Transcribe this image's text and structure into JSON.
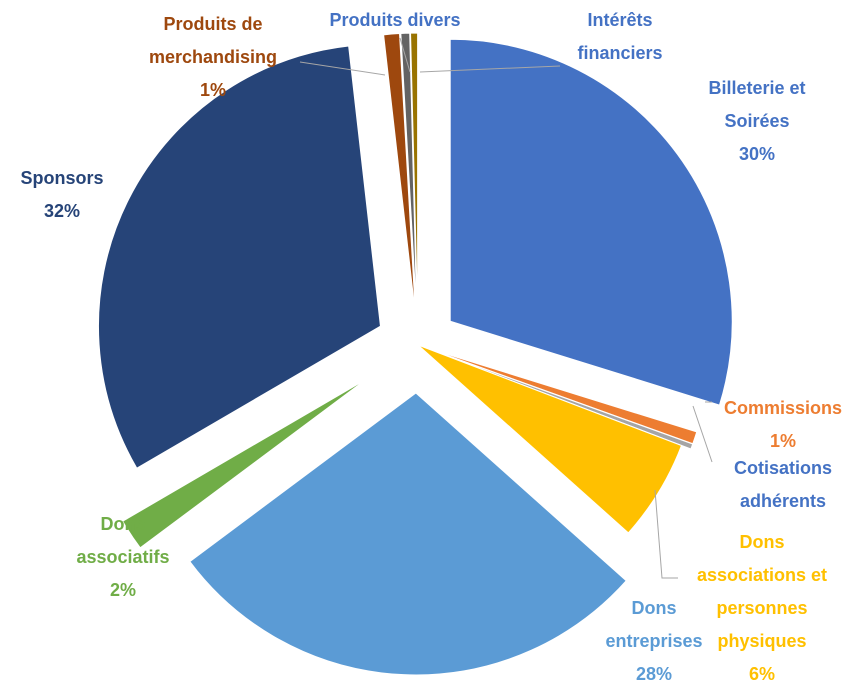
{
  "chart_data": {
    "type": "pie",
    "categories": [
      "Billeterie et Soirées",
      "Commissions",
      "Cotisations adhérents",
      "Dons associations et personnes physiques",
      "Dons entreprises",
      "Dons associatifs",
      "Sponsors",
      "Produits de merchandising",
      "Produits divers",
      "Intérêts financiers"
    ],
    "values": [
      29.8,
      0.7,
      0.3,
      5.8,
      28.2,
      1.8,
      31.6,
      0.9,
      0.5,
      0.4
    ],
    "value_labels": [
      "30%",
      "1%",
      null,
      "6%",
      "28%",
      "2%",
      "32%",
      "1%",
      null,
      null
    ],
    "colors": [
      "#4472c4",
      "#ed7d31",
      "#a5a5a5",
      "#ffc000",
      "#5b9bd5",
      "#70ad47",
      "#264478",
      "#9e480e",
      "#636363",
      "#997300"
    ]
  }
}
